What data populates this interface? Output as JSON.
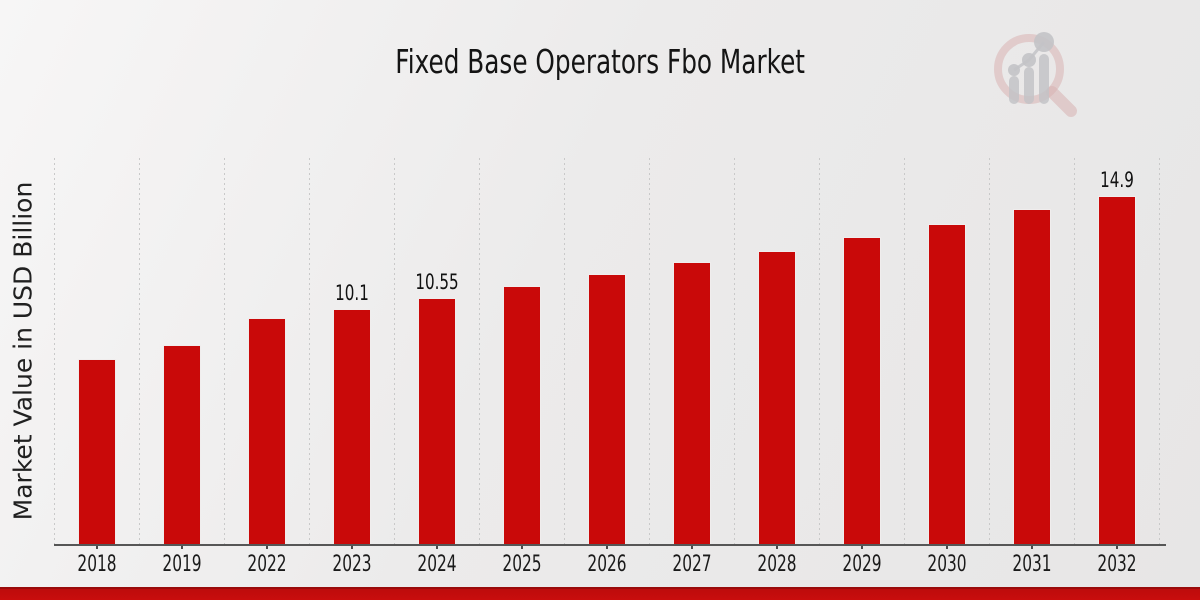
{
  "header": {
    "title": "Fixed Base Operators Fbo Market",
    "logo_name": "magnifier-bar-chart-logo"
  },
  "chart_data": {
    "type": "bar",
    "categories": [
      "2018",
      "2019",
      "2022",
      "2023",
      "2024",
      "2025",
      "2026",
      "2027",
      "2028",
      "2029",
      "2030",
      "2031",
      "2032"
    ],
    "values": [
      7.94,
      8.55,
      9.7,
      10.1,
      10.55,
      11.06,
      11.57,
      12.08,
      12.56,
      13.15,
      13.7,
      14.35,
      14.9
    ],
    "data_labels": [
      null,
      null,
      null,
      "10.1",
      "10.55",
      null,
      null,
      null,
      null,
      null,
      null,
      null,
      "14.9"
    ],
    "title": "Fixed Base Operators Fbo Market",
    "xlabel": "",
    "ylabel": "Market Value in USD Billion",
    "ylim": [
      0,
      16.53
    ],
    "grid": "vertical-dashed",
    "legend": "none",
    "bar_color": "#c90909"
  },
  "colors": {
    "bar": "#c90909",
    "footer_accent": "#c40d0d",
    "footer_accent_dark": "#9a0b0b",
    "grid": "#c9c9c9",
    "axis": "#565656",
    "background": "#eceaea",
    "logo_pink": "#d8b2b2",
    "logo_gray": "#c3c3c7"
  }
}
